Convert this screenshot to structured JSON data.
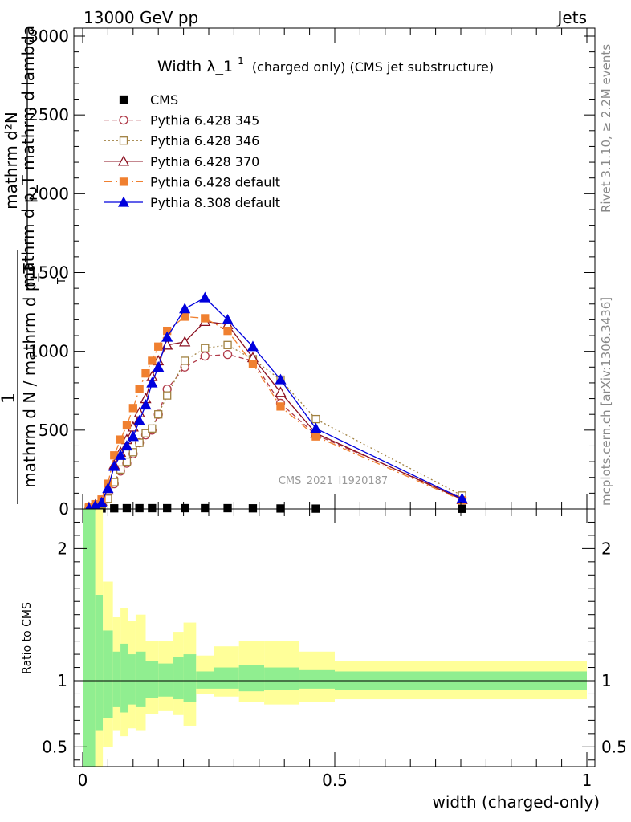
{
  "header": {
    "left": "13000 GeV pp",
    "right": "Jets"
  },
  "side_labels": {
    "rivet": "Rivet 3.1.10, ≥ 2.2M events",
    "mcplots": "mcplots.cern.ch [arXiv:1306.3436]"
  },
  "watermark": "CMS_2021_I1920187",
  "chart_data": [
    {
      "type": "scatter",
      "title_main": "Width λ_1",
      "title_sup": "1",
      "title_sub": "(charged only) (CMS jet substructure)",
      "ylabel_upper": "mathrm d²N",
      "ylabel_lower": "mathrm d p_T mathrm d lambda",
      "ylabel_prefix": "1",
      "ylabel_den": "mathrm d N / mathrm d p_T",
      "ylabel_sub": "T",
      "xlim": [
        0,
        1
      ],
      "ylim": [
        0,
        3000
      ],
      "y_ticks": [
        "0",
        "500",
        "1000",
        "1500",
        "2000",
        "2500",
        "3000"
      ],
      "series": [
        {
          "name": "CMS",
          "color": "#000000",
          "style": "marker-square",
          "x": [
            0.0125,
            0.0375,
            0.0625,
            0.0875,
            0.1125,
            0.1375,
            0.1675,
            0.2025,
            0.2425,
            0.2875,
            0.3375,
            0.3925,
            0.4625,
            0.7525
          ],
          "y": [
            2,
            3,
            4,
            5,
            5,
            5,
            5,
            5,
            5,
            5,
            4,
            3,
            2,
            1
          ]
        },
        {
          "name": "Pythia 6.428 345",
          "color": "#b03a48",
          "style": "dashed-open-circle",
          "x": [
            0.0125,
            0.025,
            0.0375,
            0.05,
            0.0625,
            0.075,
            0.0875,
            0.1,
            0.1125,
            0.125,
            0.1375,
            0.15,
            0.1675,
            0.2025,
            0.2425,
            0.2875,
            0.3375,
            0.3925,
            0.4625,
            0.7525
          ],
          "y": [
            5,
            15,
            35,
            75,
            160,
            240,
            290,
            350,
            420,
            470,
            500,
            600,
            760,
            900,
            970,
            980,
            940,
            670,
            470,
            70
          ]
        },
        {
          "name": "Pythia 6.428 346",
          "color": "#a08040",
          "style": "dotted-open-square",
          "x": [
            0.0125,
            0.025,
            0.0375,
            0.05,
            0.0625,
            0.075,
            0.0875,
            0.1,
            0.1125,
            0.125,
            0.1375,
            0.15,
            0.1675,
            0.2025,
            0.2425,
            0.2875,
            0.3375,
            0.3925,
            0.4625,
            0.7525
          ],
          "y": [
            5,
            15,
            30,
            65,
            170,
            250,
            300,
            360,
            420,
            480,
            510,
            600,
            720,
            940,
            1020,
            1040,
            950,
            820,
            570,
            85
          ]
        },
        {
          "name": "Pythia 6.428 370",
          "color": "#8b1020",
          "style": "solid-open-triangle",
          "x": [
            0.0125,
            0.025,
            0.0375,
            0.05,
            0.0625,
            0.075,
            0.0875,
            0.1,
            0.1125,
            0.125,
            0.1375,
            0.15,
            0.1675,
            0.2025,
            0.2425,
            0.2875,
            0.3375,
            0.3925,
            0.4625,
            0.7525
          ],
          "y": [
            10,
            25,
            50,
            120,
            280,
            360,
            440,
            520,
            610,
            700,
            840,
            940,
            1040,
            1060,
            1190,
            1170,
            960,
            740,
            480,
            60
          ]
        },
        {
          "name": "Pythia 6.428 default",
          "color": "#f08030",
          "style": "dashdot-filled-square",
          "x": [
            0.0125,
            0.025,
            0.0375,
            0.05,
            0.0625,
            0.075,
            0.0875,
            0.1,
            0.1125,
            0.125,
            0.1375,
            0.15,
            0.1675,
            0.2025,
            0.2425,
            0.2875,
            0.3375,
            0.3925,
            0.4625,
            0.7525
          ],
          "y": [
            10,
            30,
            60,
            160,
            340,
            440,
            530,
            640,
            760,
            860,
            940,
            1030,
            1130,
            1220,
            1210,
            1130,
            920,
            650,
            460,
            55
          ]
        },
        {
          "name": "Pythia 8.308 default",
          "color": "#0000dd",
          "style": "solid-filled-triangle",
          "x": [
            0.0125,
            0.025,
            0.0375,
            0.05,
            0.0625,
            0.075,
            0.0875,
            0.1,
            0.1125,
            0.125,
            0.1375,
            0.15,
            0.1675,
            0.2025,
            0.2425,
            0.2875,
            0.3375,
            0.3925,
            0.4625,
            0.7525
          ],
          "y": [
            5,
            20,
            40,
            130,
            270,
            340,
            400,
            460,
            560,
            660,
            800,
            900,
            1090,
            1270,
            1340,
            1200,
            1030,
            820,
            510,
            65
          ]
        }
      ]
    },
    {
      "type": "area",
      "ylabel": "Ratio to CMS",
      "xlabel": "width (charged-only)",
      "xlim": [
        0,
        1
      ],
      "ylim": [
        0.35,
        2.3
      ],
      "x_ticks": [
        "0",
        "0.5",
        "1"
      ],
      "y_ticks": [
        "0.5",
        "1",
        "2"
      ],
      "bands": [
        {
          "name": "stat",
          "color": "#90ee90"
        },
        {
          "name": "total",
          "color": "#ffff99"
        }
      ],
      "bins": [
        {
          "x0": 0.0,
          "x1": 0.025,
          "stat_lo": 0.3,
          "stat_hi": 2.3,
          "tot_lo": 0.3,
          "tot_hi": 2.3
        },
        {
          "x0": 0.025,
          "x1": 0.04,
          "stat_lo": 0.62,
          "stat_hi": 1.65,
          "tot_lo": 0.3,
          "tot_hi": 2.3
        },
        {
          "x0": 0.04,
          "x1": 0.06,
          "stat_lo": 0.72,
          "stat_hi": 1.38,
          "tot_lo": 0.5,
          "tot_hi": 1.75
        },
        {
          "x0": 0.06,
          "x1": 0.075,
          "stat_lo": 0.8,
          "stat_hi": 1.22,
          "tot_lo": 0.62,
          "tot_hi": 1.48
        },
        {
          "x0": 0.075,
          "x1": 0.09,
          "stat_lo": 0.76,
          "stat_hi": 1.28,
          "tot_lo": 0.58,
          "tot_hi": 1.55
        },
        {
          "x0": 0.09,
          "x1": 0.105,
          "stat_lo": 0.82,
          "stat_hi": 1.2,
          "tot_lo": 0.64,
          "tot_hi": 1.45
        },
        {
          "x0": 0.105,
          "x1": 0.125,
          "stat_lo": 0.8,
          "stat_hi": 1.22,
          "tot_lo": 0.62,
          "tot_hi": 1.5
        },
        {
          "x0": 0.125,
          "x1": 0.15,
          "stat_lo": 0.87,
          "stat_hi": 1.15,
          "tot_lo": 0.75,
          "tot_hi": 1.3
        },
        {
          "x0": 0.15,
          "x1": 0.18,
          "stat_lo": 0.88,
          "stat_hi": 1.13,
          "tot_lo": 0.77,
          "tot_hi": 1.3
        },
        {
          "x0": 0.18,
          "x1": 0.2,
          "stat_lo": 0.86,
          "stat_hi": 1.18,
          "tot_lo": 0.74,
          "tot_hi": 1.37
        },
        {
          "x0": 0.2,
          "x1": 0.225,
          "stat_lo": 0.84,
          "stat_hi": 1.2,
          "tot_lo": 0.66,
          "tot_hi": 1.44
        },
        {
          "x0": 0.225,
          "x1": 0.26,
          "stat_lo": 0.94,
          "stat_hi": 1.07,
          "tot_lo": 0.9,
          "tot_hi": 1.19
        },
        {
          "x0": 0.26,
          "x1": 0.31,
          "stat_lo": 0.94,
          "stat_hi": 1.1,
          "tot_lo": 0.88,
          "tot_hi": 1.26
        },
        {
          "x0": 0.31,
          "x1": 0.36,
          "stat_lo": 0.92,
          "stat_hi": 1.12,
          "tot_lo": 0.84,
          "tot_hi": 1.3
        },
        {
          "x0": 0.36,
          "x1": 0.43,
          "stat_lo": 0.93,
          "stat_hi": 1.1,
          "tot_lo": 0.82,
          "tot_hi": 1.3
        },
        {
          "x0": 0.43,
          "x1": 0.5,
          "stat_lo": 0.94,
          "stat_hi": 1.08,
          "tot_lo": 0.84,
          "tot_hi": 1.22
        },
        {
          "x0": 0.5,
          "x1": 1.0,
          "stat_lo": 0.93,
          "stat_hi": 1.07,
          "tot_lo": 0.86,
          "tot_hi": 1.15
        }
      ]
    }
  ]
}
